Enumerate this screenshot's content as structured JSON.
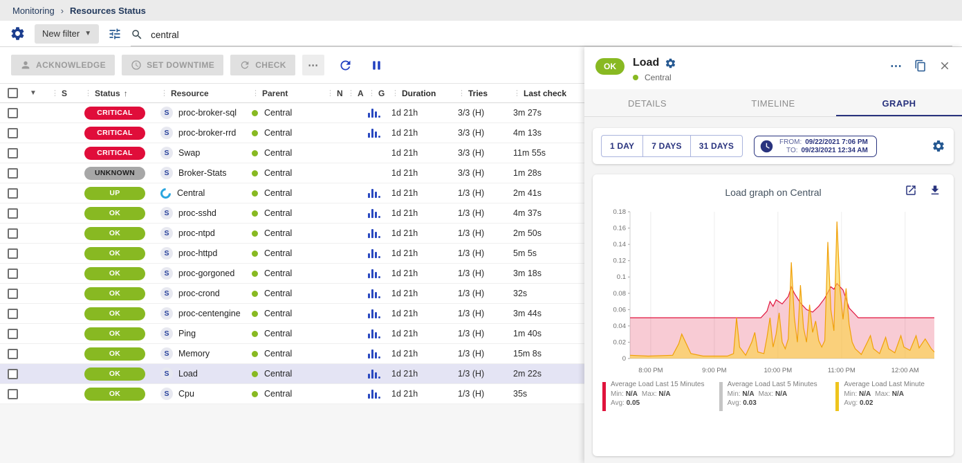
{
  "breadcrumb": {
    "items": [
      "Monitoring",
      "Resources Status"
    ],
    "separator": "›"
  },
  "filter_bar": {
    "new_filter_label": "New filter",
    "search_value": "central"
  },
  "toolbar": {
    "acknowledge_label": "ACKNOWLEDGE",
    "set_downtime_label": "SET DOWNTIME",
    "check_label": "CHECK",
    "more_label": "⋯"
  },
  "table": {
    "headers": [
      "S",
      "Status",
      "Resource",
      "Parent",
      "N",
      "A",
      "G",
      "Duration",
      "Tries",
      "Last check"
    ],
    "sorted_by": "Status",
    "service_icon_letter": "S",
    "rows": [
      {
        "status": "CRITICAL",
        "kind": "critical",
        "icon": "service",
        "resource": "proc-broker-sql",
        "parent": "Central",
        "graph": true,
        "duration": "1d 21h",
        "tries": "3/3 (H)",
        "last_check": "3m 27s",
        "selected": false
      },
      {
        "status": "CRITICAL",
        "kind": "critical",
        "icon": "service",
        "resource": "proc-broker-rrd",
        "parent": "Central",
        "graph": true,
        "duration": "1d 21h",
        "tries": "3/3 (H)",
        "last_check": "4m 13s",
        "selected": false
      },
      {
        "status": "CRITICAL",
        "kind": "critical",
        "icon": "service",
        "resource": "Swap",
        "parent": "Central",
        "graph": false,
        "duration": "1d 21h",
        "tries": "3/3 (H)",
        "last_check": "11m 55s",
        "selected": false
      },
      {
        "status": "UNKNOWN",
        "kind": "unknown",
        "icon": "service",
        "resource": "Broker-Stats",
        "parent": "Central",
        "graph": false,
        "duration": "1d 21h",
        "tries": "3/3 (H)",
        "last_check": "1m 28s",
        "selected": false
      },
      {
        "status": "UP",
        "kind": "up",
        "icon": "host",
        "resource": "Central",
        "parent": "Central",
        "graph": true,
        "duration": "1d 21h",
        "tries": "1/3 (H)",
        "last_check": "2m 41s",
        "selected": false
      },
      {
        "status": "OK",
        "kind": "ok",
        "icon": "service",
        "resource": "proc-sshd",
        "parent": "Central",
        "graph": true,
        "duration": "1d 21h",
        "tries": "1/3 (H)",
        "last_check": "4m 37s",
        "selected": false
      },
      {
        "status": "OK",
        "kind": "ok",
        "icon": "service",
        "resource": "proc-ntpd",
        "parent": "Central",
        "graph": true,
        "duration": "1d 21h",
        "tries": "1/3 (H)",
        "last_check": "2m 50s",
        "selected": false
      },
      {
        "status": "OK",
        "kind": "ok",
        "icon": "service",
        "resource": "proc-httpd",
        "parent": "Central",
        "graph": true,
        "duration": "1d 21h",
        "tries": "1/3 (H)",
        "last_check": "5m 5s",
        "selected": false
      },
      {
        "status": "OK",
        "kind": "ok",
        "icon": "service",
        "resource": "proc-gorgoned",
        "parent": "Central",
        "graph": true,
        "duration": "1d 21h",
        "tries": "1/3 (H)",
        "last_check": "3m 18s",
        "selected": false
      },
      {
        "status": "OK",
        "kind": "ok",
        "icon": "service",
        "resource": "proc-crond",
        "parent": "Central",
        "graph": true,
        "duration": "1d 21h",
        "tries": "1/3 (H)",
        "last_check": "32s",
        "selected": false
      },
      {
        "status": "OK",
        "kind": "ok",
        "icon": "service",
        "resource": "proc-centengine",
        "parent": "Central",
        "graph": true,
        "duration": "1d 21h",
        "tries": "1/3 (H)",
        "last_check": "3m 44s",
        "selected": false
      },
      {
        "status": "OK",
        "kind": "ok",
        "icon": "service",
        "resource": "Ping",
        "parent": "Central",
        "graph": true,
        "duration": "1d 21h",
        "tries": "1/3 (H)",
        "last_check": "1m 40s",
        "selected": false
      },
      {
        "status": "OK",
        "kind": "ok",
        "icon": "service",
        "resource": "Memory",
        "parent": "Central",
        "graph": true,
        "duration": "1d 21h",
        "tries": "1/3 (H)",
        "last_check": "15m 8s",
        "selected": false
      },
      {
        "status": "OK",
        "kind": "ok",
        "icon": "service",
        "resource": "Load",
        "parent": "Central",
        "graph": true,
        "duration": "1d 21h",
        "tries": "1/3 (H)",
        "last_check": "2m 22s",
        "selected": true
      },
      {
        "status": "OK",
        "kind": "ok",
        "icon": "service",
        "resource": "Cpu",
        "parent": "Central",
        "graph": true,
        "duration": "1d 21h",
        "tries": "1/3 (H)",
        "last_check": "35s",
        "selected": false
      }
    ]
  },
  "panel": {
    "status": "OK",
    "title": "Load",
    "parent": "Central",
    "more_label": "⋯",
    "tabs": [
      "DETAILS",
      "TIMELINE",
      "GRAPH"
    ],
    "active_tab": "GRAPH",
    "periods": [
      "1 DAY",
      "7 DAYS",
      "31 DAYS"
    ],
    "range": {
      "from_label": "FROM:",
      "from_value": "09/22/2021 7:06 PM",
      "to_label": "TO:",
      "to_value": "09/23/2021 12:34 AM"
    }
  },
  "chart_data": {
    "type": "area",
    "title": "Load graph on Central",
    "x_ticks": [
      "8:00 PM",
      "9:00 PM",
      "10:00 PM",
      "11:00 PM",
      "12:00 AM"
    ],
    "x_tick_pos": [
      6.8,
      27.7,
      48.6,
      69.5,
      90.4
    ],
    "ylim": [
      0,
      0.18
    ],
    "y_ticks": [
      0,
      0.02,
      0.04,
      0.06,
      0.08,
      0.1,
      0.12,
      0.14,
      0.16,
      0.18
    ],
    "legend_labels": {
      "min": "Min:",
      "max": "Max:",
      "avg": "Avg:"
    },
    "series": [
      {
        "name": "Average Load Last 15 Minutes",
        "legend_color": "#e0133c",
        "stroke": "#e0133c",
        "fill": "rgba(224,19,60,0.22)",
        "min": "N/A",
        "max": "N/A",
        "avg": "0.05",
        "points": [
          [
            0,
            0.05
          ],
          [
            43,
            0.05
          ],
          [
            45,
            0.058
          ],
          [
            46,
            0.07
          ],
          [
            47,
            0.064
          ],
          [
            48,
            0.072
          ],
          [
            50,
            0.067
          ],
          [
            52,
            0.076
          ],
          [
            53,
            0.088
          ],
          [
            54,
            0.08
          ],
          [
            56,
            0.068
          ],
          [
            58,
            0.06
          ],
          [
            60,
            0.057
          ],
          [
            62,
            0.064
          ],
          [
            64,
            0.074
          ],
          [
            66,
            0.088
          ],
          [
            67,
            0.085
          ],
          [
            68,
            0.092
          ],
          [
            70,
            0.084
          ],
          [
            72,
            0.062
          ],
          [
            74,
            0.054
          ],
          [
            75,
            0.05
          ],
          [
            100,
            0.05
          ]
        ]
      },
      {
        "name": "Average Load Last 5 Minutes",
        "legend_color": "#c5c5c5",
        "stroke": "#c5c5c5",
        "fill": "rgba(197,197,197,0.2)",
        "min": "N/A",
        "max": "N/A",
        "avg": "0.03",
        "points": []
      },
      {
        "name": "Average Load Last Minute",
        "legend_color": "#eec41d",
        "stroke": "#f0a007",
        "fill": "rgba(252,212,64,0.6)",
        "min": "N/A",
        "max": "N/A",
        "avg": "0.02",
        "points": [
          [
            0,
            0.004
          ],
          [
            6,
            0.003
          ],
          [
            14,
            0.004
          ],
          [
            16,
            0.018
          ],
          [
            17,
            0.03
          ],
          [
            18,
            0.022
          ],
          [
            20,
            0.006
          ],
          [
            24,
            0.003
          ],
          [
            32,
            0.003
          ],
          [
            34,
            0.006
          ],
          [
            35,
            0.05
          ],
          [
            36,
            0.014
          ],
          [
            38,
            0.004
          ],
          [
            40,
            0.02
          ],
          [
            41,
            0.032
          ],
          [
            42,
            0.008
          ],
          [
            44,
            0.006
          ],
          [
            45,
            0.026
          ],
          [
            46,
            0.05
          ],
          [
            47,
            0.014
          ],
          [
            48,
            0.03
          ],
          [
            49,
            0.056
          ],
          [
            50,
            0.02
          ],
          [
            51,
            0.012
          ],
          [
            52,
            0.024
          ],
          [
            53,
            0.118
          ],
          [
            54,
            0.05
          ],
          [
            55,
            0.02
          ],
          [
            56,
            0.09
          ],
          [
            57,
            0.038
          ],
          [
            58,
            0.02
          ],
          [
            59,
            0.066
          ],
          [
            60,
            0.032
          ],
          [
            61,
            0.046
          ],
          [
            62,
            0.022
          ],
          [
            63,
            0.014
          ],
          [
            64,
            0.022
          ],
          [
            65,
            0.143
          ],
          [
            66,
            0.06
          ],
          [
            67,
            0.034
          ],
          [
            68,
            0.168
          ],
          [
            69,
            0.085
          ],
          [
            70,
            0.048
          ],
          [
            71,
            0.086
          ],
          [
            72,
            0.042
          ],
          [
            73,
            0.02
          ],
          [
            74,
            0.012
          ],
          [
            76,
            0.005
          ],
          [
            78,
            0.02
          ],
          [
            79,
            0.028
          ],
          [
            80,
            0.012
          ],
          [
            82,
            0.006
          ],
          [
            84,
            0.026
          ],
          [
            85,
            0.012
          ],
          [
            87,
            0.007
          ],
          [
            89,
            0.028
          ],
          [
            90,
            0.014
          ],
          [
            92,
            0.01
          ],
          [
            94,
            0.028
          ],
          [
            95,
            0.013
          ],
          [
            97,
            0.024
          ],
          [
            99,
            0.012
          ],
          [
            100,
            0.008
          ]
        ]
      }
    ]
  }
}
